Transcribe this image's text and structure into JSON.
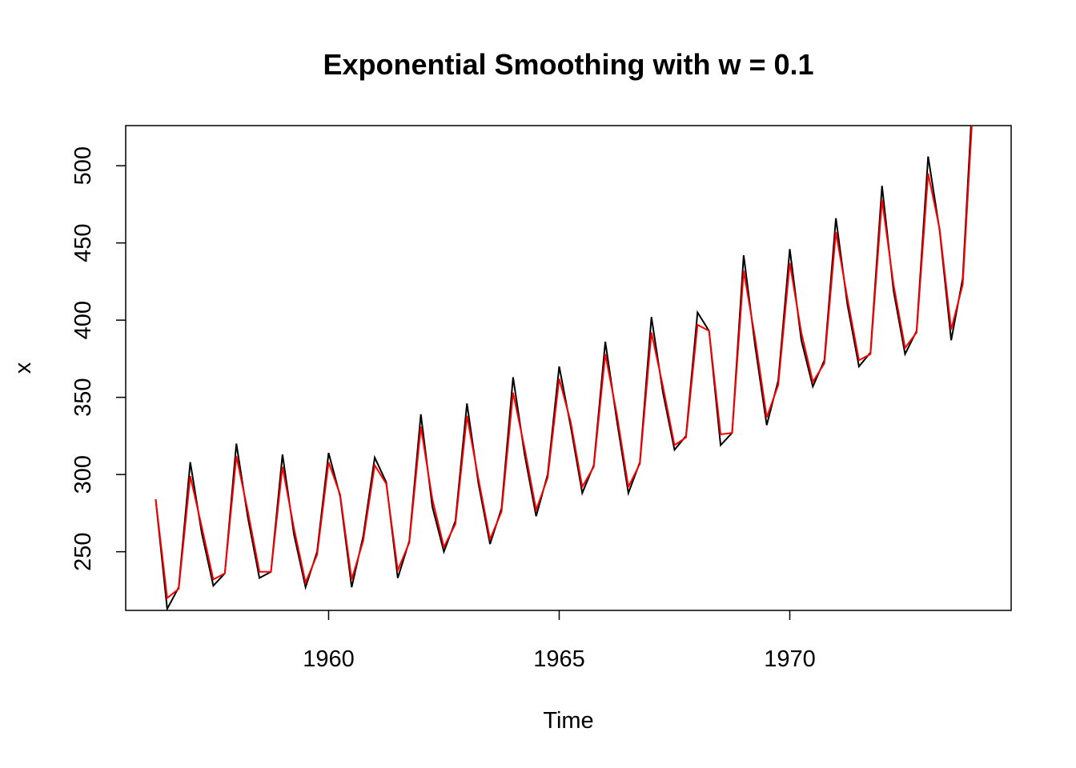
{
  "chart_data": {
    "type": "line",
    "title": "Exponential Smoothing with w = 0.1",
    "xlabel": "Time",
    "ylabel": "x",
    "xlim": [
      1955.6,
      1974.8
    ],
    "ylim": [
      212,
      526
    ],
    "x_ticks": [
      1960,
      1965,
      1970
    ],
    "y_ticks": [
      250,
      300,
      350,
      400,
      450,
      500
    ],
    "x_start": 1956.25,
    "x_step": 0.25,
    "grid": false,
    "legend": "none",
    "series": [
      {
        "color": "#000000",
        "values": [
          284,
          213,
          227,
          308,
          262,
          228,
          236,
          320,
          272,
          233,
          237,
          313,
          261,
          227,
          250,
          314,
          286,
          227,
          260,
          311,
          295,
          233,
          257,
          339,
          279,
          250,
          270,
          346,
          294,
          255,
          278,
          363,
          313,
          273,
          300,
          370,
          331,
          288,
          306,
          386,
          335,
          288,
          308,
          402,
          353,
          316,
          325,
          405,
          393,
          319,
          327,
          442,
          383,
          332,
          361,
          446,
          387,
          357,
          374,
          466,
          410,
          370,
          379,
          487,
          419,
          378,
          393,
          506,
          458,
          387,
          427,
          565
        ]
      },
      {
        "color": "#ff0000",
        "values": [
          284,
          220,
          226,
          299,
          266,
          232,
          236,
          312,
          276,
          237,
          237,
          305,
          265,
          230,
          248,
          308,
          287,
          232,
          257,
          306,
          294,
          238,
          256,
          331,
          284,
          253,
          268,
          338,
          297,
          258,
          276,
          353,
          317,
          277,
          298,
          362,
          334,
          292,
          305,
          378,
          339,
          292,
          307,
          392,
          357,
          319,
          324,
          397,
          393,
          326,
          327,
          432,
          388,
          337,
          358,
          437,
          392,
          360,
          372,
          457,
          414,
          374,
          378,
          478,
          423,
          382,
          392,
          495,
          459,
          394,
          423,
          554
        ]
      }
    ]
  }
}
